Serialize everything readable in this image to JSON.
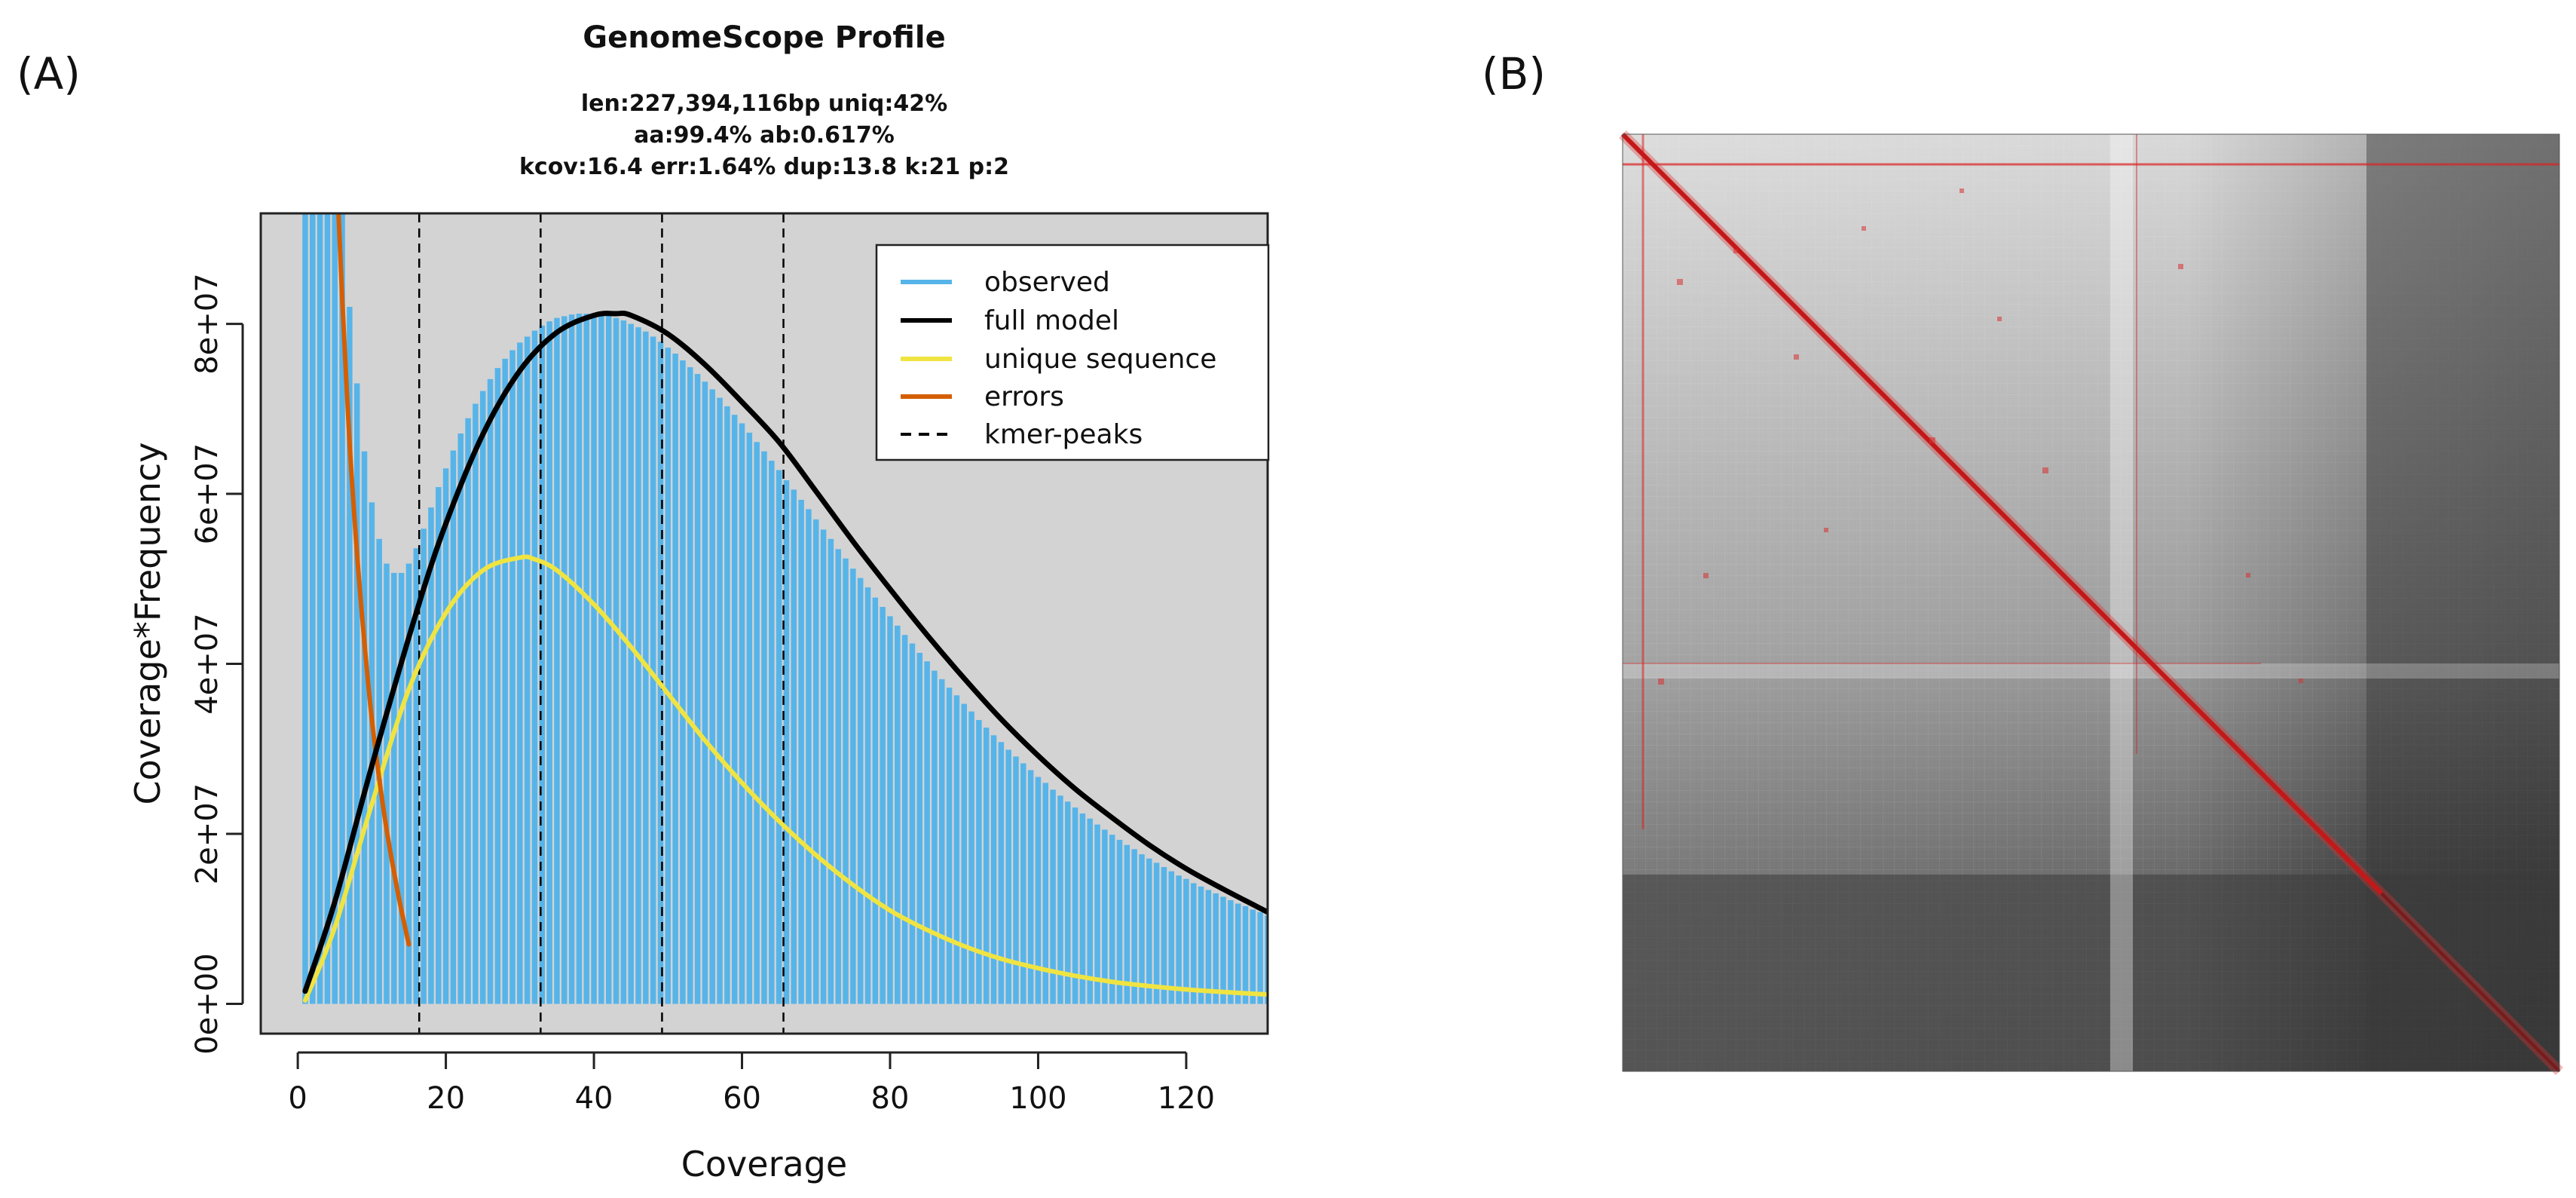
{
  "panel_a": {
    "label": "(A)"
  },
  "panel_b": {
    "label": "(B)"
  },
  "chart_data": [
    {
      "type": "bar",
      "title": "GenomeScope Profile",
      "subtitle_lines": [
        "len:227,394,116bp uniq:42%",
        "aa:99.4% ab:0.617%",
        "kcov:16.4 err:1.64%  dup:13.8  k:21 p:2"
      ],
      "xlabel": "Coverage",
      "ylabel": "Coverage*Frequency",
      "xlim": [
        -5,
        131
      ],
      "ylim": [
        -3500000.0,
        93000000.0
      ],
      "xticks": [
        0,
        20,
        40,
        60,
        80,
        100,
        120
      ],
      "xtick_labels": [
        "0",
        "20",
        "40",
        "60",
        "80",
        "100",
        "120"
      ],
      "yticks": [
        0,
        20000000,
        40000000,
        60000000,
        80000000
      ],
      "ytick_labels": [
        "0e+00",
        "2e+07",
        "4e+07",
        "6e+07",
        "8e+07"
      ],
      "kmer_peaks": [
        16.4,
        32.8,
        49.2,
        65.6
      ],
      "legend": {
        "position": "top-right",
        "entries": [
          {
            "label": "observed",
            "color": "#56b4e9",
            "style": "solid"
          },
          {
            "label": "full model",
            "color": "#000000",
            "style": "solid"
          },
          {
            "label": "unique sequence",
            "color": "#f0e442",
            "style": "solid"
          },
          {
            "label": "errors",
            "color": "#d55e00",
            "style": "solid"
          },
          {
            "label": "kmer-peaks",
            "color": "#000000",
            "style": "dashed"
          }
        ]
      },
      "series": [
        {
          "name": "observed",
          "kind": "bars",
          "x": [
            1,
            2,
            3,
            4,
            5,
            6,
            7,
            8,
            9,
            10,
            11,
            12,
            13,
            14,
            15,
            16,
            17,
            18,
            19,
            20,
            21,
            22,
            23,
            24,
            25,
            26,
            27,
            28,
            29,
            30,
            31,
            32,
            33,
            34,
            35,
            36,
            37,
            38,
            39,
            40,
            41,
            42,
            43,
            44,
            45,
            46,
            47,
            48,
            49,
            50,
            51,
            52,
            53,
            54,
            55,
            56,
            57,
            58,
            59,
            60,
            61,
            62,
            63,
            64,
            65,
            66,
            67,
            68,
            69,
            70,
            71,
            72,
            73,
            74,
            75,
            76,
            77,
            78,
            79,
            80,
            81,
            82,
            83,
            84,
            85,
            86,
            87,
            88,
            89,
            90,
            91,
            92,
            93,
            94,
            95,
            96,
            97,
            98,
            99,
            100,
            101,
            102,
            103,
            104,
            105,
            106,
            107,
            108,
            109,
            110,
            111,
            112,
            113,
            114,
            115,
            116,
            117,
            118,
            119,
            120,
            121,
            122,
            123,
            124,
            125,
            126,
            127,
            128,
            129,
            130,
            131
          ],
          "values": [
            93000000,
            93000000,
            93000000,
            93000000,
            93000000,
            93000000,
            82000000,
            73000000,
            65000000,
            59000000,
            54700000,
            51800000,
            50700000,
            50700000,
            51800000,
            53600000,
            55900000,
            58400000,
            60800000,
            63000000,
            65100000,
            67100000,
            68900000,
            70600000,
            72100000,
            73500000,
            74800000,
            75900000,
            76900000,
            77800000,
            78500000,
            79200000,
            79800000,
            80300000,
            80700000,
            80900000,
            81100000,
            81200000,
            81200000,
            81200000,
            81100000,
            81000000,
            80700000,
            80400000,
            80000000,
            79600000,
            79100000,
            78500000,
            77900000,
            77200000,
            76500000,
            75700000,
            74900000,
            74100000,
            73200000,
            72300000,
            71300000,
            70300000,
            69300000,
            68300000,
            67200000,
            66100000,
            65000000,
            63900000,
            62800000,
            61600000,
            60500000,
            59300000,
            58200000,
            57000000,
            55800000,
            54700000,
            53500000,
            52400000,
            51200000,
            50100000,
            49000000,
            47800000,
            46700000,
            45600000,
            44500000,
            43400000,
            42400000,
            41300000,
            40300000,
            39200000,
            38200000,
            37200000,
            36300000,
            35300000,
            34400000,
            33400000,
            32500000,
            31600000,
            30800000,
            29900000,
            29100000,
            28300000,
            27500000,
            26700000,
            26000000,
            25200000,
            24500000,
            23800000,
            23100000,
            22400000,
            21800000,
            21100000,
            20500000,
            19900000,
            19300000,
            18700000,
            18200000,
            17600000,
            17100000,
            16600000,
            16100000,
            15600000,
            15100000,
            14700000,
            14200000,
            13800000,
            13400000,
            13000000,
            12600000,
            12200000,
            11800000,
            11500000,
            11100000,
            10800000,
            10400000
          ]
        },
        {
          "name": "full model",
          "kind": "line",
          "x": [
            1,
            5,
            10,
            16,
            20,
            25,
            30,
            35,
            40,
            43,
            45,
            50,
            55,
            60,
            65,
            70,
            75,
            80,
            85,
            90,
            95,
            100,
            105,
            110,
            115,
            120,
            125,
            131
          ],
          "values": [
            1500000,
            12000000,
            28000000,
            46000000,
            56500000,
            67000000,
            74500000,
            79000000,
            81000000,
            81200000,
            81000000,
            78800000,
            75200000,
            70800000,
            66100000,
            60300000,
            54400000,
            48800000,
            43400000,
            38300000,
            33500000,
            29200000,
            25300000,
            21900000,
            18700000,
            15900000,
            13500000,
            10800000
          ]
        },
        {
          "name": "unique sequence",
          "kind": "line",
          "x": [
            1,
            5,
            10,
            15,
            20,
            25,
            30,
            32,
            35,
            40,
            45,
            50,
            55,
            60,
            65,
            70,
            75,
            80,
            85,
            90,
            95,
            100,
            105,
            110,
            115,
            120,
            125,
            131
          ],
          "values": [
            400000,
            9000000,
            23500000,
            37000000,
            46000000,
            51000000,
            52500000,
            52300000,
            51000000,
            47000000,
            42000000,
            36500000,
            31000000,
            26000000,
            21500000,
            17500000,
            14000000,
            11000000,
            8700000,
            6800000,
            5300000,
            4200000,
            3300000,
            2600000,
            2100000,
            1700000,
            1400000,
            1100000
          ]
        },
        {
          "name": "errors",
          "kind": "line",
          "x": [
            5.5,
            6,
            7,
            8,
            9,
            10,
            11,
            12,
            13,
            14,
            15
          ],
          "values": [
            93000000,
            83000000,
            66000000,
            53000000,
            42500000,
            33500000,
            26500000,
            20500000,
            15500000,
            11000000,
            7000000
          ]
        }
      ]
    },
    {
      "type": "heatmap",
      "title": "",
      "description": "contact matrix with red diagonal"
    }
  ]
}
